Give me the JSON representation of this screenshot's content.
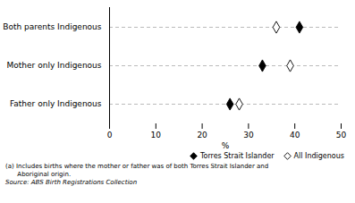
{
  "chart_data": {
    "type": "dot",
    "categories": [
      "Father only Indigenous",
      "Mother only Indigenous",
      "Both parents Indigenous"
    ],
    "series": [
      {
        "name": "Torres Strait Islander",
        "color": "#000000",
        "marker": "diamond",
        "values": [
          26,
          33,
          41
        ]
      },
      {
        "name": "All Indigenous",
        "color": "#ffffff",
        "marker": "diamond",
        "values": [
          28,
          39,
          36
        ]
      }
    ],
    "xlabel": "%",
    "xlim": [
      0,
      50
    ],
    "xticks": [
      0,
      10,
      20,
      30,
      40,
      50
    ],
    "orientation": "horizontal",
    "grid": true,
    "legend": "lower right",
    "annotations": [
      "(a) Includes births where the mother or father was of both Torres Strait Islander and",
      "      Aboriginal origin."
    ],
    "source": "Source: ABS Birth Registrations Collection"
  }
}
